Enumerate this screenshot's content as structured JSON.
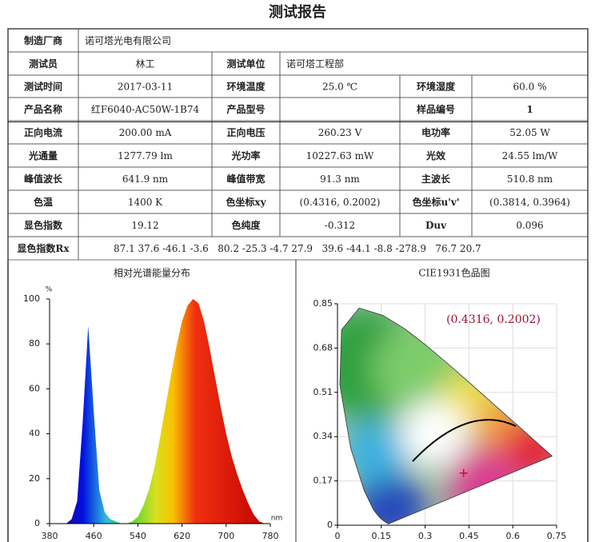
{
  "title": "测试报告",
  "table": {
    "rows": [
      [
        "制造厂商",
        "诺可塔光电有限公司"
      ],
      [
        "测试员",
        "林工",
        "测试单位",
        "诺可塔工程部"
      ],
      [
        "测试时间",
        "2017-03-11",
        "环境温度",
        "25.0 ℃",
        "环境湿度",
        "60.0 %"
      ],
      [
        "产品名称",
        "红F6040-AC50W-1B74",
        "产品型号",
        "样品编号",
        "1"
      ],
      [
        "正向电流",
        "200.00 mA",
        "正向电压",
        "260.23 V",
        "电功率",
        "52.05 W"
      ],
      [
        "光通量",
        "1277.79 lm",
        "光功率",
        "10227.63 mW",
        "光效",
        "24.55 lm/W"
      ],
      [
        "峰值波长",
        "641.9 nm",
        "峰值带宽",
        "91.3 nm",
        "主波长",
        "510.8 nm"
      ],
      [
        "色温",
        "1400 K",
        "色坐标xy",
        "(0.4316, 0.2002)",
        "色坐标u'v'",
        "(0.3814, 0.3964)"
      ],
      [
        "显色指数",
        "19.12",
        "色纯度",
        "-0.312",
        "Duv",
        "0.096"
      ],
      [
        "显色指数Rx",
        "87.1 37.6 -46.1 -3.6   80.2 -25.3 -4.7 27.9   39.6 -44.1 -8.8 -278.9   76.7 20.7"
      ]
    ]
  },
  "spectrum": {
    "title": "相对光谱能量分布",
    "y_unit": "%",
    "x_unit": "nm",
    "x": [
      380,
      390,
      400,
      410,
      420,
      430,
      440,
      450,
      460,
      470,
      480,
      490,
      500,
      510,
      520,
      530,
      540,
      550,
      560,
      570,
      580,
      590,
      600,
      610,
      620,
      630,
      640,
      650,
      660,
      670,
      680,
      690,
      700,
      710,
      720,
      730,
      740,
      750,
      760,
      770,
      780
    ],
    "values": [
      0,
      0,
      0,
      0,
      2,
      10,
      45,
      88,
      50,
      15,
      5,
      2,
      1,
      0,
      0,
      1,
      3,
      8,
      15,
      25,
      38,
      52,
      66,
      79,
      90,
      97,
      100,
      98,
      90,
      78,
      65,
      52,
      40,
      30,
      22,
      15,
      9,
      4,
      1,
      0,
      0
    ],
    "xlim": [
      380,
      780
    ],
    "ylim": [
      0,
      100
    ],
    "xticks": [
      380,
      460,
      540,
      620,
      700,
      780
    ],
    "yticks": [
      0,
      20,
      40,
      60,
      80,
      100
    ]
  },
  "cie": {
    "title": "CIE1931色品图",
    "point": {
      "x": 0.4316,
      "y": 0.2002,
      "label": "(0.4316, 0.2002)"
    },
    "xlim": [
      0,
      0.75
    ],
    "ylim": [
      0,
      0.85
    ],
    "xticks": [
      0,
      0.15,
      0.3,
      0.45,
      0.6,
      0.75
    ],
    "yticks": [
      0,
      0.17,
      0.34,
      0.51,
      0.68,
      0.85
    ],
    "grid": true
  }
}
